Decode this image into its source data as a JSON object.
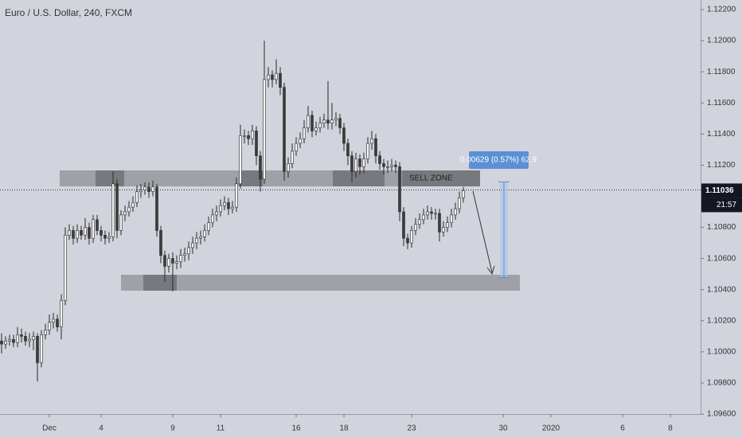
{
  "chart_data": {
    "type": "candlestick",
    "title": "Euro / U.S. Dollar, 240, FXCM",
    "categories": [
      null,
      null,
      null,
      null,
      null,
      null,
      null,
      null,
      null,
      null,
      null,
      null,
      "Dec",
      null,
      null,
      null,
      null,
      null,
      null,
      null,
      null,
      null,
      null,
      null,
      null,
      "4",
      null,
      null,
      null,
      null,
      null,
      null,
      null,
      null,
      null,
      null,
      null,
      null,
      null,
      null,
      null,
      null,
      null,
      "9",
      null,
      null,
      null,
      null,
      null,
      null,
      null,
      null,
      null,
      null,
      null,
      "11",
      null,
      null,
      null,
      null,
      null,
      null,
      null,
      null,
      null,
      null,
      null,
      null,
      null,
      null,
      null,
      null,
      null,
      null,
      "16",
      null,
      null,
      null,
      null,
      null,
      null,
      null,
      null,
      null,
      null,
      null,
      "18",
      null,
      null,
      null,
      null,
      null,
      null,
      null,
      null,
      null,
      null,
      null,
      null,
      null,
      null,
      null,
      null,
      "23",
      null,
      null,
      null,
      null,
      null,
      null,
      null,
      null,
      null,
      null,
      null,
      null,
      null,
      null,
      null,
      null,
      null,
      null,
      null,
      null,
      null,
      null,
      "30",
      null,
      null,
      null,
      null,
      null,
      null,
      null,
      null,
      null,
      null,
      null,
      "2020",
      null,
      null,
      null,
      null,
      null,
      null,
      null,
      null,
      null,
      null,
      null,
      null,
      null,
      null,
      null,
      null,
      null,
      "6",
      null,
      null,
      null,
      null,
      null,
      null,
      null,
      null,
      null,
      null,
      null,
      "8"
    ],
    "open": [
      1.1007,
      1.1005,
      1.1007,
      1.1008,
      1.1006,
      1.1011,
      1.101,
      1.1007,
      1.1008,
      1.101,
      1.0993,
      1.1011,
      1.1014,
      1.1019,
      1.1021,
      1.1016,
      1.1033,
      1.1075,
      1.1078,
      1.1073,
      1.1078,
      1.1075,
      1.108,
      1.1073,
      1.1085,
      1.1078,
      1.1075,
      1.1073,
      1.1074,
      1.1108,
      1.1078,
      1.1088,
      1.109,
      1.1093,
      1.1096,
      1.1103,
      1.1104,
      1.1106,
      1.1103,
      1.1106,
      1.1078,
      1.1062,
      1.1055,
      1.106,
      1.1057,
      1.1058,
      1.1062,
      1.1063,
      1.1067,
      1.107,
      1.1073,
      1.1074,
      1.1078,
      1.1083,
      1.1088,
      1.109,
      1.1094,
      1.1096,
      1.1092,
      1.1093,
      1.1108,
      1.1139,
      1.1139,
      1.1137,
      1.1142,
      1.1126,
      1.1111,
      1.1175,
      1.1178,
      1.1175,
      1.1179,
      1.117,
      1.1116,
      1.1121,
      1.1129,
      1.1134,
      1.1137,
      1.1144,
      1.1152,
      1.1142,
      1.1144,
      1.1147,
      1.1149,
      1.1147,
      1.1149,
      1.115,
      1.1144,
      1.1134,
      1.1126,
      1.1116,
      1.1124,
      1.1119,
      1.1124,
      1.1134,
      1.1137,
      1.1126,
      1.1121,
      1.1119,
      1.1119,
      1.112,
      1.1119,
      1.109,
      1.1073,
      1.107,
      1.1078,
      1.1082,
      1.1085,
      1.1088,
      1.109,
      1.1089,
      1.1089,
      1.1077,
      1.108,
      1.1083,
      1.1088,
      1.1092,
      1.1099,
      null,
      null,
      null,
      null,
      null,
      null,
      null,
      null,
      null,
      null,
      null,
      null,
      null,
      null,
      null,
      null,
      null,
      null,
      null,
      null,
      null,
      null,
      null,
      null,
      null,
      null,
      null,
      null,
      null,
      null,
      null,
      null,
      null,
      null,
      null,
      null,
      null,
      null,
      null,
      null,
      null,
      null,
      null,
      null,
      null,
      null,
      null,
      null,
      null,
      null,
      null,
      null
    ],
    "high": [
      1.1012,
      1.101,
      1.1011,
      1.1011,
      1.1016,
      1.1015,
      1.1013,
      1.1012,
      1.1013,
      1.1012,
      1.1014,
      1.1018,
      1.1024,
      1.1025,
      1.1024,
      1.1037,
      1.108,
      1.1082,
      1.1081,
      1.1082,
      1.1081,
      1.1086,
      1.1083,
      1.1088,
      1.1088,
      1.1081,
      1.1078,
      1.1077,
      1.1116,
      1.1111,
      1.1091,
      1.1094,
      1.1097,
      1.11,
      1.1107,
      1.1108,
      1.1109,
      1.1109,
      1.111,
      1.1108,
      1.1081,
      1.1065,
      1.1063,
      1.1064,
      1.1062,
      1.1066,
      1.1067,
      1.1071,
      1.1074,
      1.1077,
      1.1078,
      1.1082,
      1.1087,
      1.1092,
      1.1094,
      1.1098,
      1.11,
      1.1099,
      1.1097,
      1.1112,
      1.1146,
      1.1143,
      1.1142,
      1.1146,
      1.1145,
      1.1129,
      1.12,
      1.1183,
      1.1181,
      1.1188,
      1.1183,
      1.1173,
      1.1125,
      1.1134,
      1.1138,
      1.1141,
      1.1149,
      1.1158,
      1.1155,
      1.1148,
      1.1151,
      1.1153,
      1.1174,
      1.116,
      1.1154,
      1.1153,
      1.1147,
      1.1137,
      1.1129,
      1.1128,
      1.1127,
      1.1128,
      1.1138,
      1.1142,
      1.114,
      1.1129,
      1.1124,
      1.1123,
      1.1124,
      1.1123,
      1.1122,
      1.1093,
      1.1076,
      1.1081,
      1.1086,
      1.1089,
      1.1092,
      1.1094,
      1.1093,
      1.1092,
      1.1092,
      1.1084,
      1.1087,
      1.1092,
      1.1096,
      1.1103,
      1.1106,
      null,
      null,
      null,
      null,
      null,
      null,
      null,
      null,
      null,
      null,
      null,
      null,
      null,
      null,
      null,
      null,
      null,
      null,
      null,
      null,
      null,
      null,
      null,
      null,
      null,
      null,
      null,
      null,
      null,
      null,
      null,
      null,
      null,
      null,
      null,
      null,
      null,
      null,
      null,
      null,
      null,
      null,
      null,
      null,
      null,
      null,
      null,
      null,
      null,
      null,
      null,
      null
    ],
    "low": [
      1.0999,
      1.1002,
      1.1004,
      1.1003,
      1.1003,
      1.1006,
      1.1004,
      1.1003,
      1.1001,
      1.0981,
      1.099,
      1.1008,
      1.1011,
      1.1015,
      1.1013,
      1.1008,
      1.103,
      1.1072,
      1.1069,
      1.107,
      1.1072,
      1.1072,
      1.1069,
      1.107,
      1.1075,
      1.1071,
      1.1069,
      1.107,
      1.1071,
      1.1073,
      1.1075,
      1.1084,
      1.1087,
      1.109,
      1.1093,
      1.1099,
      1.1101,
      1.1099,
      1.11,
      1.1074,
      1.1057,
      1.1045,
      1.1051,
      1.1039,
      1.1053,
      1.1054,
      1.1058,
      1.1059,
      1.1063,
      1.1066,
      1.1069,
      1.1071,
      1.1075,
      1.108,
      1.1084,
      1.1087,
      1.1091,
      1.1088,
      1.1089,
      1.109,
      1.1105,
      1.1134,
      1.1133,
      1.1133,
      1.112,
      1.1103,
      1.1108,
      1.117,
      1.117,
      1.1172,
      1.1165,
      1.111,
      1.1112,
      1.1118,
      1.1126,
      1.1131,
      1.1134,
      1.1141,
      1.1138,
      1.1139,
      1.1141,
      1.1144,
      1.1143,
      1.1143,
      1.1145,
      1.114,
      1.1129,
      1.112,
      1.1109,
      1.1112,
      1.1114,
      1.1115,
      1.1121,
      1.113,
      1.1121,
      1.1117,
      1.1114,
      1.1115,
      1.1116,
      1.1115,
      1.1084,
      1.1068,
      1.1066,
      1.1067,
      1.1075,
      1.1079,
      1.1082,
      1.1085,
      1.1085,
      1.1085,
      1.1071,
      1.1074,
      1.1077,
      1.108,
      1.1085,
      1.1089,
      1.1096,
      null,
      null,
      null,
      null,
      null,
      null,
      null,
      null,
      null,
      null,
      null,
      null,
      null,
      null,
      null,
      null,
      null,
      null,
      null,
      null,
      null,
      null,
      null,
      null,
      null,
      null,
      null,
      null,
      null,
      null,
      null,
      null,
      null,
      null,
      null,
      null,
      null,
      null,
      null,
      null,
      null,
      null,
      null,
      null,
      null,
      null,
      null,
      null,
      null,
      null,
      null,
      null
    ],
    "close": [
      1.1005,
      1.1007,
      1.1008,
      1.1006,
      1.1011,
      1.101,
      1.1007,
      1.1008,
      1.101,
      1.0993,
      1.1011,
      1.1014,
      1.1019,
      1.1021,
      1.1016,
      1.1033,
      1.1075,
      1.1078,
      1.1073,
      1.1078,
      1.1075,
      1.108,
      1.1073,
      1.1085,
      1.1078,
      1.1075,
      1.1073,
      1.1074,
      1.1108,
      1.1078,
      1.1088,
      1.109,
      1.1093,
      1.1096,
      1.1103,
      1.1104,
      1.1106,
      1.1103,
      1.1106,
      1.1078,
      1.1062,
      1.1055,
      1.106,
      1.1057,
      1.1058,
      1.1062,
      1.1063,
      1.1067,
      1.107,
      1.1073,
      1.1074,
      1.1078,
      1.1083,
      1.1088,
      1.109,
      1.1094,
      1.1096,
      1.1092,
      1.1093,
      1.1108,
      1.1139,
      1.1139,
      1.1137,
      1.1142,
      1.1126,
      1.1111,
      1.1175,
      1.1178,
      1.1175,
      1.1179,
      1.117,
      1.1116,
      1.1121,
      1.1129,
      1.1134,
      1.1137,
      1.1144,
      1.1152,
      1.1142,
      1.1144,
      1.1147,
      1.1149,
      1.1147,
      1.1149,
      1.115,
      1.1144,
      1.1134,
      1.1126,
      1.1116,
      1.1124,
      1.1119,
      1.1124,
      1.1134,
      1.1137,
      1.1126,
      1.1121,
      1.1119,
      1.1119,
      1.112,
      1.1119,
      1.109,
      1.1073,
      1.107,
      1.1078,
      1.1082,
      1.1085,
      1.1088,
      1.109,
      1.1089,
      1.1089,
      1.1077,
      1.108,
      1.1083,
      1.1088,
      1.1092,
      1.1099,
      1.11036,
      null,
      null,
      null,
      null,
      null,
      null,
      null,
      null,
      null,
      null,
      null,
      null,
      null,
      null,
      null,
      null,
      null,
      null,
      null,
      null,
      null,
      null,
      null,
      null,
      null,
      null,
      null,
      null,
      null,
      null,
      null,
      null,
      null,
      null,
      null,
      null,
      null,
      null,
      null,
      null,
      null,
      null,
      null,
      null,
      null,
      null,
      null,
      null,
      null,
      null,
      null,
      null
    ],
    "up_color": "#f4f4f4",
    "down_color": "#3c3c3c",
    "ylim": [
      1.096,
      1.122
    ],
    "yticks": [
      {
        "value": 1.096,
        "label": "1.09600"
      },
      {
        "value": 1.098,
        "label": "1.09800"
      },
      {
        "value": 1.1,
        "label": "1.10000"
      },
      {
        "value": 1.102,
        "label": "1.10200"
      },
      {
        "value": 1.104,
        "label": "1.10400"
      },
      {
        "value": 1.106,
        "label": "1.10600"
      },
      {
        "value": 1.108,
        "label": "1.10800"
      },
      {
        "value": 1.11,
        "label": "1.11000"
      },
      {
        "value": 1.112,
        "label": "1.11200"
      },
      {
        "value": 1.114,
        "label": "1.11400"
      },
      {
        "value": 1.116,
        "label": "1.11600"
      },
      {
        "value": 1.118,
        "label": "1.11800"
      },
      {
        "value": 1.12,
        "label": "1.12000"
      },
      {
        "value": 1.122,
        "label": "1.12200"
      }
    ],
    "last_price": {
      "value": 1.11036,
      "label": "1.11036"
    },
    "countdown": "21:57",
    "sell_zone_label": "SELL ZONE",
    "measure_label": "0.00629 (0.57%) 62.9"
  }
}
